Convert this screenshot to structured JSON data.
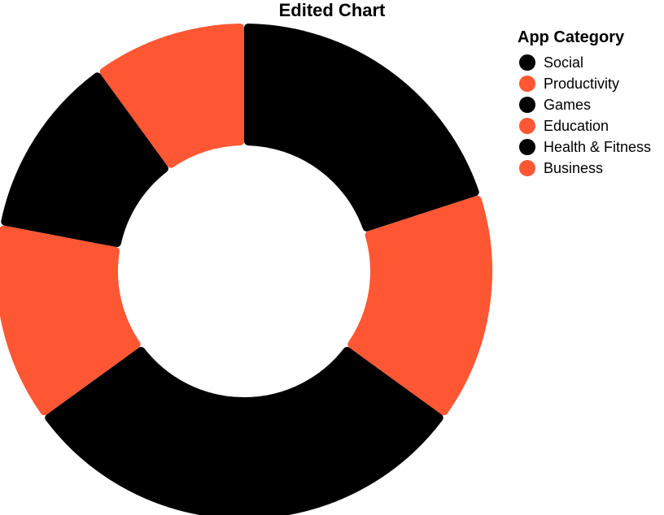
{
  "chart_data": {
    "type": "pie",
    "variant": "donut",
    "title": "Edited Chart",
    "legend": {
      "title": "App Category",
      "placement": "right"
    },
    "categories": [
      "Social",
      "Productivity",
      "Games",
      "Education",
      "Health & Fitness",
      "Business"
    ],
    "values": [
      20,
      15,
      30,
      13,
      12,
      10
    ],
    "colors": [
      "#000000",
      "#ff5733",
      "#000000",
      "#ff5733",
      "#000000",
      "#ff5733"
    ],
    "start_angle_deg": 0,
    "direction": "clockwise"
  }
}
